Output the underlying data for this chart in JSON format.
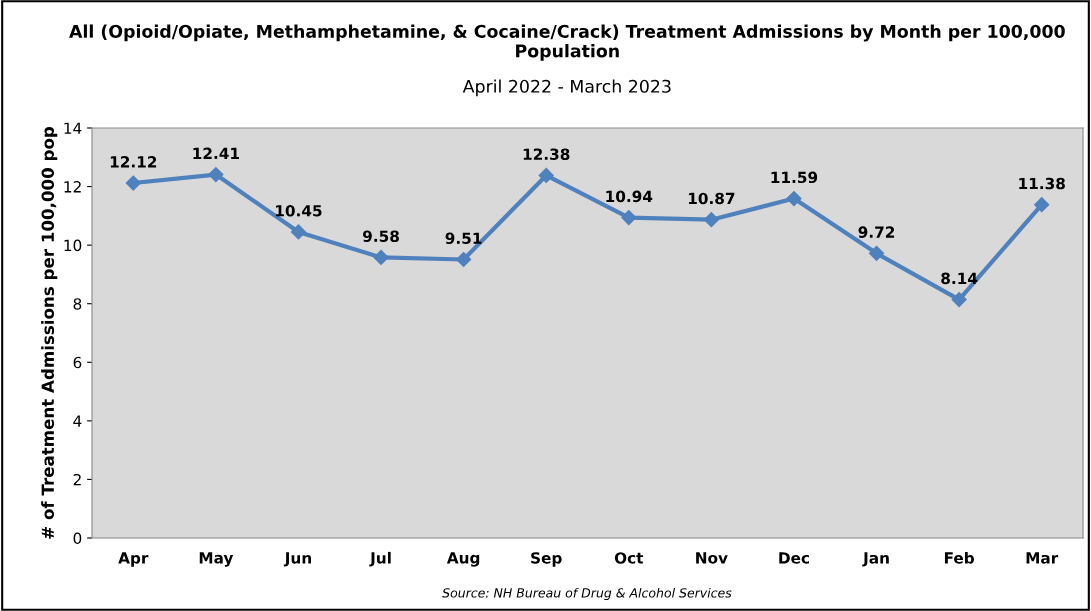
{
  "chart_data": {
    "type": "line",
    "title": "All (Opioid/Opiate, Methamphetamine, & Cocaine/Crack) Treatment Admissions by Month per 100,000 Population",
    "subtitle": "April 2022 - March 2023",
    "ylabel": "# of Treatment Admissions per 100,000 pop",
    "categories": [
      "Apr",
      "May",
      "Jun",
      "Jul",
      "Aug",
      "Sep",
      "Oct",
      "Nov",
      "Dec",
      "Jan",
      "Feb",
      "Mar"
    ],
    "series": [
      {
        "color": "#4f81bd",
        "values": [
          12.12,
          12.41,
          10.45,
          9.58,
          9.51,
          12.38,
          10.94,
          10.87,
          11.59,
          9.72,
          8.14,
          11.38
        ]
      }
    ],
    "ylim": [
      0,
      14
    ],
    "yticks": [
      0,
      2,
      4,
      6,
      8,
      10,
      12,
      14
    ],
    "grid": false,
    "legend": false,
    "marker": "diamond",
    "line_style": "solid",
    "data_labels": true,
    "annotations": [
      "Source: NH Bureau of Drug & Alcohol Services"
    ]
  }
}
